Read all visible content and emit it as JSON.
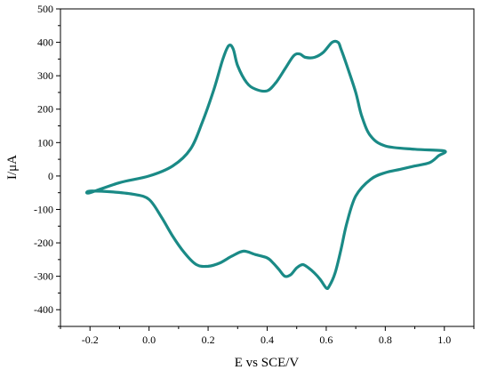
{
  "chart_data": {
    "type": "line",
    "title": "",
    "xlabel": "E vs SCE/V",
    "ylabel": "I/μA",
    "xlim": [
      -0.3,
      1.1
    ],
    "ylim": [
      -450,
      500
    ],
    "x_ticks": [
      -0.2,
      0.0,
      0.2,
      0.4,
      0.6,
      0.8,
      1.0
    ],
    "x_tick_labels": [
      "-0.2",
      "0.0",
      "0.2",
      "0.4",
      "0.6",
      "0.8",
      "1.0"
    ],
    "y_ticks": [
      -400,
      -300,
      -200,
      -100,
      0,
      100,
      200,
      300,
      400,
      500
    ],
    "y_tick_labels": [
      "-400",
      "-300",
      "-200",
      "-100",
      "0",
      "100",
      "200",
      "300",
      "400",
      "500"
    ],
    "grid": false,
    "series": [
      {
        "color": "#1a8a86",
        "x": [
          -0.2,
          -0.1,
          0.0,
          0.08,
          0.14,
          0.18,
          0.22,
          0.25,
          0.27,
          0.285,
          0.3,
          0.33,
          0.36,
          0.4,
          0.43,
          0.46,
          0.49,
          0.51,
          0.53,
          0.56,
          0.59,
          0.62,
          0.64,
          0.65,
          0.67,
          0.7,
          0.72,
          0.75,
          0.8,
          0.9,
          1.0,
          0.98,
          0.95,
          0.9,
          0.85,
          0.8,
          0.75,
          0.7,
          0.67,
          0.65,
          0.63,
          0.61,
          0.6,
          0.58,
          0.56,
          0.54,
          0.52,
          0.5,
          0.48,
          0.46,
          0.44,
          0.42,
          0.4,
          0.36,
          0.32,
          0.28,
          0.24,
          0.2,
          0.16,
          0.12,
          0.08,
          0.04,
          0.0,
          -0.05,
          -0.12,
          -0.2
        ],
        "y": [
          -50,
          -20,
          0,
          30,
          80,
          160,
          260,
          350,
          390,
          380,
          330,
          280,
          260,
          255,
          280,
          320,
          360,
          365,
          355,
          355,
          370,
          400,
          400,
          380,
          330,
          250,
          180,
          120,
          90,
          80,
          75,
          60,
          40,
          30,
          20,
          10,
          -10,
          -60,
          -140,
          -220,
          -290,
          -330,
          -335,
          -310,
          -290,
          -275,
          -265,
          -275,
          -295,
          -300,
          -280,
          -260,
          -245,
          -235,
          -225,
          -240,
          -260,
          -270,
          -265,
          -230,
          -180,
          -120,
          -70,
          -55,
          -48,
          -45
        ]
      }
    ]
  }
}
